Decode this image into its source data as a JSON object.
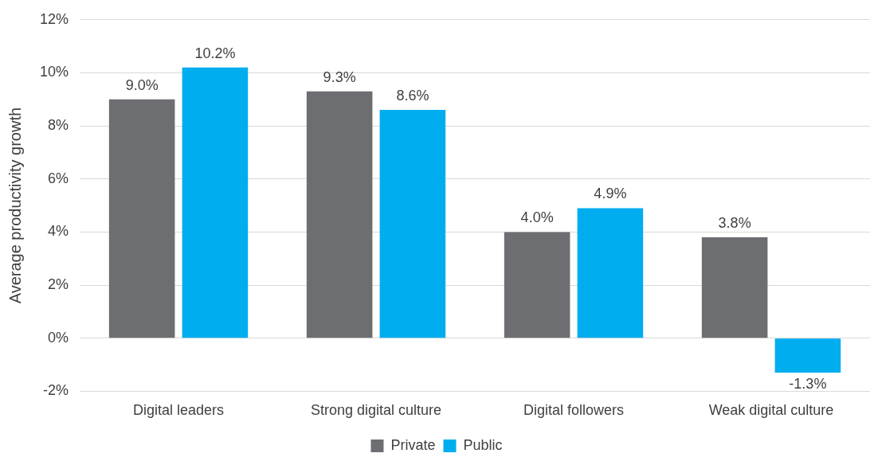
{
  "chart_data": {
    "type": "bar",
    "ylabel": "Average productivity growth",
    "categories": [
      "Digital leaders",
      "Strong digital culture",
      "Digital followers",
      "Weak digital culture"
    ],
    "series": [
      {
        "name": "Private",
        "color": "#6d6e71",
        "values": [
          9.0,
          9.3,
          4.0,
          3.8
        ],
        "value_labels": [
          "9.0%",
          "9.3%",
          "4.0%",
          "3.8%"
        ]
      },
      {
        "name": "Public",
        "color": "#00adef",
        "values": [
          10.2,
          8.6,
          4.9,
          -1.3
        ],
        "value_labels": [
          "10.2%",
          "8.6%",
          "4.9%",
          "-1.3%"
        ]
      }
    ],
    "ylim": [
      -2,
      12
    ],
    "yticks": [
      {
        "value": -2,
        "label": "-2%"
      },
      {
        "value": 0,
        "label": "0%"
      },
      {
        "value": 2,
        "label": "2%"
      },
      {
        "value": 4,
        "label": "4%"
      },
      {
        "value": 6,
        "label": "6%"
      },
      {
        "value": 8,
        "label": "8%"
      },
      {
        "value": 10,
        "label": "10%"
      },
      {
        "value": 12,
        "label": "12%"
      }
    ],
    "grid": "y",
    "legend": "bottom"
  }
}
